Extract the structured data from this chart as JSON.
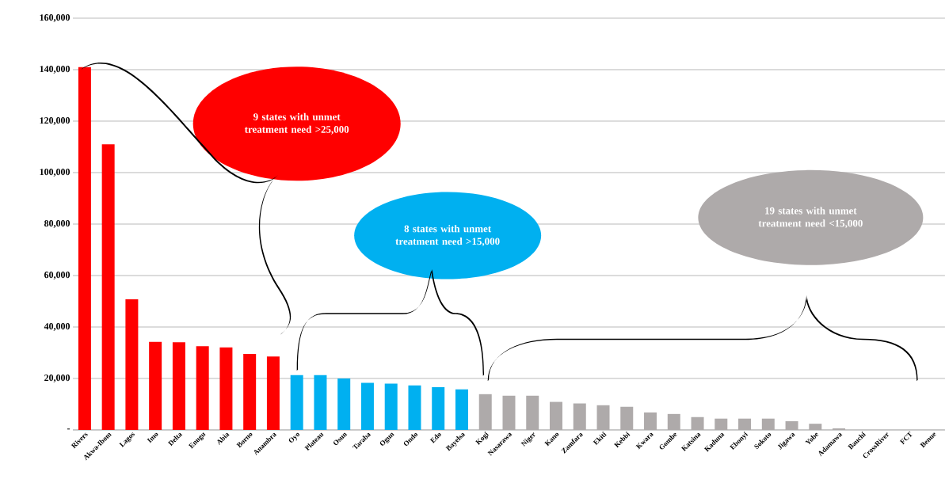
{
  "chart_data": {
    "type": "bar",
    "categories": [
      "Rivers",
      "Akwa-Ibom",
      "Lagos",
      "Imo",
      "Delta",
      "Enugu",
      "Abia",
      "Borno",
      "Anambra",
      "Oyo",
      "Plateau",
      "Osun",
      "Taraba",
      "Ogun",
      "Ondo",
      "Edo",
      "Bayelsa",
      "Kogi",
      "Nasarawa",
      "Niger",
      "Kano",
      "Zamfara",
      "Ekiti",
      "Kebbi",
      "Kwara",
      "Gombe",
      "Katsina",
      "Kaduna",
      "Ebonyi",
      "Sokoto",
      "Jigawa",
      "Yobe",
      "Adamawa",
      "Bauchi",
      "CrossRiver",
      "FCT",
      "Benue"
    ],
    "values": [
      141000,
      111000,
      50800,
      34200,
      34100,
      32500,
      32100,
      29500,
      28500,
      21300,
      21300,
      20000,
      18300,
      18000,
      17300,
      16600,
      15800,
      13900,
      13300,
      13300,
      10900,
      10300,
      9600,
      9000,
      6800,
      6200,
      5000,
      4400,
      4400,
      4400,
      3400,
      2400,
      600,
      0,
      0,
      0,
      0
    ],
    "colors": [
      "#ff0000",
      "#ff0000",
      "#ff0000",
      "#ff0000",
      "#ff0000",
      "#ff0000",
      "#ff0000",
      "#ff0000",
      "#ff0000",
      "#00b0f0",
      "#00b0f0",
      "#00b0f0",
      "#00b0f0",
      "#00b0f0",
      "#00b0f0",
      "#00b0f0",
      "#00b0f0",
      "#aeaaaa",
      "#aeaaaa",
      "#aeaaaa",
      "#aeaaaa",
      "#aeaaaa",
      "#aeaaaa",
      "#aeaaaa",
      "#aeaaaa",
      "#aeaaaa",
      "#aeaaaa",
      "#aeaaaa",
      "#aeaaaa",
      "#aeaaaa",
      "#aeaaaa",
      "#aeaaaa",
      "#aeaaaa",
      "#aeaaaa",
      "#aeaaaa",
      "#aeaaaa",
      "#aeaaaa"
    ],
    "ylim": [
      0,
      160000
    ],
    "yticks": [
      {
        "value": 0,
        "label": "-"
      },
      {
        "value": 20000,
        "label": "20,000"
      },
      {
        "value": 40000,
        "label": "40,000"
      },
      {
        "value": 60000,
        "label": "60,000"
      },
      {
        "value": 80000,
        "label": "80,000"
      },
      {
        "value": 100000,
        "label": "100,000"
      },
      {
        "value": 120000,
        "label": "120,000"
      },
      {
        "value": 140000,
        "label": "140,000"
      },
      {
        "value": 160000,
        "label": "160,000"
      }
    ],
    "grid": "y",
    "annotations": [
      "9 states with unmet treatment need >25,000",
      "8 states with unmet treatment need >15,000",
      "19 states with unmet treatment need <15,000"
    ]
  }
}
